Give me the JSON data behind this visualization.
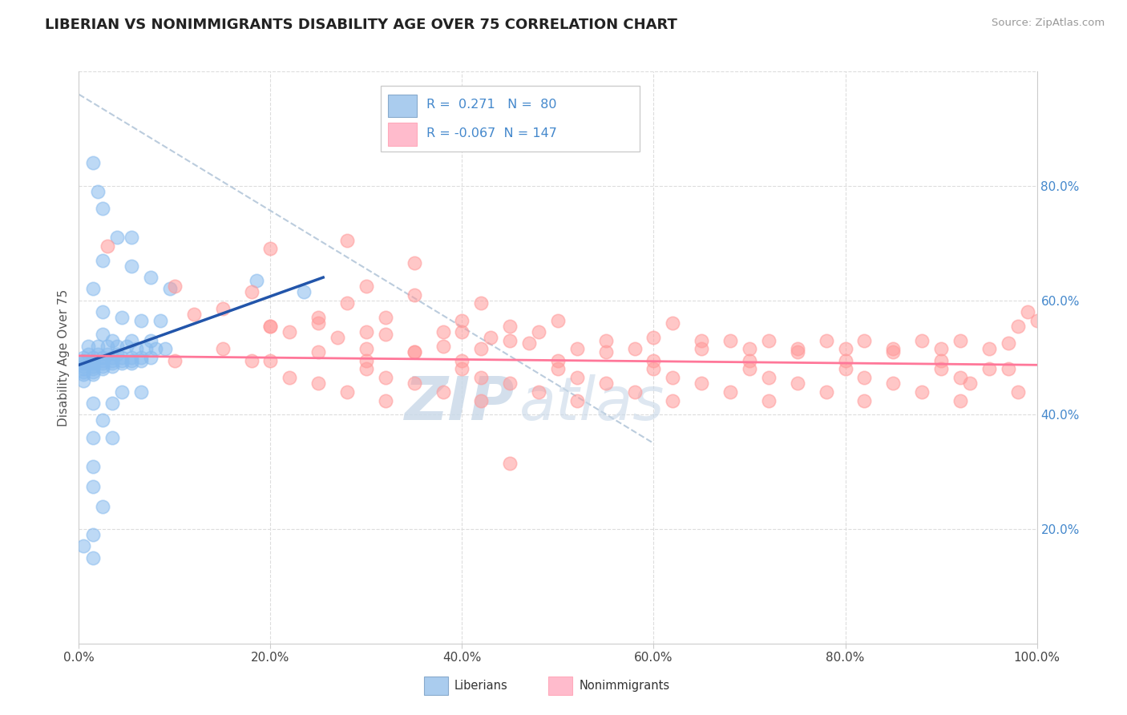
{
  "title": "LIBERIAN VS NONIMMIGRANTS DISABILITY AGE OVER 75 CORRELATION CHART",
  "source": "Source: ZipAtlas.com",
  "ylabel": "Disability Age Over 75",
  "watermark_zip": "ZIP",
  "watermark_atlas": "atlas",
  "legend_blue_R": 0.271,
  "legend_blue_N": 80,
  "legend_pink_R": -0.067,
  "legend_pink_N": 147,
  "xlim": [
    0.0,
    1.0
  ],
  "ylim": [
    0.0,
    1.0
  ],
  "blue_dot_color": "#88BBEE",
  "pink_dot_color": "#FF9999",
  "blue_line_color": "#2255AA",
  "pink_line_color": "#FF7799",
  "dash_line_color": "#BBCCDD",
  "title_color": "#222222",
  "source_color": "#999999",
  "ylabel_color": "#555555",
  "right_tick_color": "#4488CC",
  "grid_color": "#DDDDDD",
  "legend_box_color": "#CCCCCC",
  "blue_legend_fill": "#AACCEE",
  "pink_legend_fill": "#FFBBCC",
  "blue_scatter": [
    [
      0.015,
      0.84
    ],
    [
      0.02,
      0.79
    ],
    [
      0.025,
      0.76
    ],
    [
      0.04,
      0.71
    ],
    [
      0.055,
      0.71
    ],
    [
      0.025,
      0.67
    ],
    [
      0.055,
      0.66
    ],
    [
      0.075,
      0.64
    ],
    [
      0.015,
      0.62
    ],
    [
      0.095,
      0.62
    ],
    [
      0.025,
      0.58
    ],
    [
      0.045,
      0.57
    ],
    [
      0.065,
      0.565
    ],
    [
      0.085,
      0.565
    ],
    [
      0.025,
      0.54
    ],
    [
      0.035,
      0.53
    ],
    [
      0.055,
      0.53
    ],
    [
      0.075,
      0.53
    ],
    [
      0.01,
      0.52
    ],
    [
      0.02,
      0.52
    ],
    [
      0.03,
      0.52
    ],
    [
      0.04,
      0.52
    ],
    [
      0.05,
      0.52
    ],
    [
      0.06,
      0.515
    ],
    [
      0.07,
      0.515
    ],
    [
      0.08,
      0.515
    ],
    [
      0.09,
      0.515
    ],
    [
      0.01,
      0.505
    ],
    [
      0.02,
      0.505
    ],
    [
      0.03,
      0.505
    ],
    [
      0.04,
      0.505
    ],
    [
      0.005,
      0.5
    ],
    [
      0.015,
      0.5
    ],
    [
      0.025,
      0.5
    ],
    [
      0.035,
      0.5
    ],
    [
      0.045,
      0.5
    ],
    [
      0.055,
      0.5
    ],
    [
      0.065,
      0.5
    ],
    [
      0.075,
      0.5
    ],
    [
      0.005,
      0.495
    ],
    [
      0.015,
      0.495
    ],
    [
      0.025,
      0.495
    ],
    [
      0.035,
      0.495
    ],
    [
      0.045,
      0.495
    ],
    [
      0.055,
      0.495
    ],
    [
      0.065,
      0.495
    ],
    [
      0.005,
      0.49
    ],
    [
      0.015,
      0.49
    ],
    [
      0.025,
      0.49
    ],
    [
      0.035,
      0.49
    ],
    [
      0.045,
      0.49
    ],
    [
      0.055,
      0.49
    ],
    [
      0.005,
      0.485
    ],
    [
      0.015,
      0.485
    ],
    [
      0.025,
      0.485
    ],
    [
      0.035,
      0.485
    ],
    [
      0.005,
      0.48
    ],
    [
      0.015,
      0.48
    ],
    [
      0.025,
      0.48
    ],
    [
      0.005,
      0.475
    ],
    [
      0.015,
      0.475
    ],
    [
      0.005,
      0.47
    ],
    [
      0.015,
      0.47
    ],
    [
      0.005,
      0.46
    ],
    [
      0.045,
      0.44
    ],
    [
      0.065,
      0.44
    ],
    [
      0.015,
      0.42
    ],
    [
      0.035,
      0.42
    ],
    [
      0.025,
      0.39
    ],
    [
      0.015,
      0.36
    ],
    [
      0.035,
      0.36
    ],
    [
      0.015,
      0.31
    ],
    [
      0.015,
      0.275
    ],
    [
      0.025,
      0.24
    ],
    [
      0.015,
      0.19
    ],
    [
      0.005,
      0.17
    ],
    [
      0.015,
      0.15
    ],
    [
      0.185,
      0.635
    ],
    [
      0.235,
      0.615
    ]
  ],
  "pink_scatter": [
    [
      0.03,
      0.695
    ],
    [
      0.1,
      0.625
    ],
    [
      0.2,
      0.69
    ],
    [
      0.28,
      0.705
    ],
    [
      0.12,
      0.575
    ],
    [
      0.15,
      0.585
    ],
    [
      0.18,
      0.615
    ],
    [
      0.2,
      0.555
    ],
    [
      0.22,
      0.545
    ],
    [
      0.25,
      0.57
    ],
    [
      0.28,
      0.595
    ],
    [
      0.3,
      0.545
    ],
    [
      0.32,
      0.57
    ],
    [
      0.35,
      0.61
    ],
    [
      0.38,
      0.545
    ],
    [
      0.4,
      0.565
    ],
    [
      0.42,
      0.595
    ],
    [
      0.3,
      0.625
    ],
    [
      0.35,
      0.665
    ],
    [
      0.2,
      0.555
    ],
    [
      0.25,
      0.56
    ],
    [
      0.27,
      0.535
    ],
    [
      0.3,
      0.515
    ],
    [
      0.32,
      0.54
    ],
    [
      0.35,
      0.51
    ],
    [
      0.38,
      0.52
    ],
    [
      0.4,
      0.545
    ],
    [
      0.42,
      0.515
    ],
    [
      0.43,
      0.535
    ],
    [
      0.45,
      0.555
    ],
    [
      0.47,
      0.525
    ],
    [
      0.48,
      0.545
    ],
    [
      0.5,
      0.565
    ],
    [
      0.52,
      0.515
    ],
    [
      0.55,
      0.53
    ],
    [
      0.58,
      0.515
    ],
    [
      0.6,
      0.535
    ],
    [
      0.62,
      0.56
    ],
    [
      0.65,
      0.515
    ],
    [
      0.68,
      0.53
    ],
    [
      0.7,
      0.515
    ],
    [
      0.72,
      0.53
    ],
    [
      0.75,
      0.515
    ],
    [
      0.78,
      0.53
    ],
    [
      0.8,
      0.515
    ],
    [
      0.82,
      0.53
    ],
    [
      0.85,
      0.515
    ],
    [
      0.88,
      0.53
    ],
    [
      0.9,
      0.515
    ],
    [
      0.92,
      0.53
    ],
    [
      0.95,
      0.515
    ],
    [
      0.97,
      0.525
    ],
    [
      0.98,
      0.555
    ],
    [
      0.99,
      0.58
    ],
    [
      1.0,
      0.565
    ],
    [
      0.15,
      0.515
    ],
    [
      0.2,
      0.495
    ],
    [
      0.25,
      0.51
    ],
    [
      0.3,
      0.495
    ],
    [
      0.35,
      0.51
    ],
    [
      0.4,
      0.495
    ],
    [
      0.45,
      0.53
    ],
    [
      0.5,
      0.495
    ],
    [
      0.55,
      0.51
    ],
    [
      0.6,
      0.495
    ],
    [
      0.65,
      0.53
    ],
    [
      0.7,
      0.495
    ],
    [
      0.75,
      0.51
    ],
    [
      0.8,
      0.495
    ],
    [
      0.85,
      0.51
    ],
    [
      0.9,
      0.495
    ],
    [
      0.18,
      0.495
    ],
    [
      0.3,
      0.48
    ],
    [
      0.4,
      0.48
    ],
    [
      0.5,
      0.48
    ],
    [
      0.6,
      0.48
    ],
    [
      0.7,
      0.48
    ],
    [
      0.8,
      0.48
    ],
    [
      0.9,
      0.48
    ],
    [
      0.95,
      0.48
    ],
    [
      0.97,
      0.48
    ],
    [
      0.22,
      0.465
    ],
    [
      0.32,
      0.465
    ],
    [
      0.42,
      0.465
    ],
    [
      0.52,
      0.465
    ],
    [
      0.62,
      0.465
    ],
    [
      0.72,
      0.465
    ],
    [
      0.82,
      0.465
    ],
    [
      0.92,
      0.465
    ],
    [
      0.25,
      0.455
    ],
    [
      0.35,
      0.455
    ],
    [
      0.45,
      0.455
    ],
    [
      0.55,
      0.455
    ],
    [
      0.65,
      0.455
    ],
    [
      0.75,
      0.455
    ],
    [
      0.85,
      0.455
    ],
    [
      0.93,
      0.455
    ],
    [
      0.28,
      0.44
    ],
    [
      0.38,
      0.44
    ],
    [
      0.48,
      0.44
    ],
    [
      0.58,
      0.44
    ],
    [
      0.68,
      0.44
    ],
    [
      0.78,
      0.44
    ],
    [
      0.88,
      0.44
    ],
    [
      0.98,
      0.44
    ],
    [
      0.32,
      0.425
    ],
    [
      0.42,
      0.425
    ],
    [
      0.52,
      0.425
    ],
    [
      0.62,
      0.425
    ],
    [
      0.72,
      0.425
    ],
    [
      0.82,
      0.425
    ],
    [
      0.92,
      0.425
    ],
    [
      0.1,
      0.495
    ],
    [
      0.45,
      0.315
    ]
  ],
  "blue_line_x": [
    0.0,
    0.255
  ],
  "blue_line_y": [
    0.487,
    0.64
  ],
  "pink_line_x": [
    0.0,
    1.0
  ],
  "pink_line_y": [
    0.503,
    0.487
  ],
  "dash_line_x": [
    0.0,
    0.6
  ],
  "dash_line_y": [
    0.96,
    0.35
  ]
}
